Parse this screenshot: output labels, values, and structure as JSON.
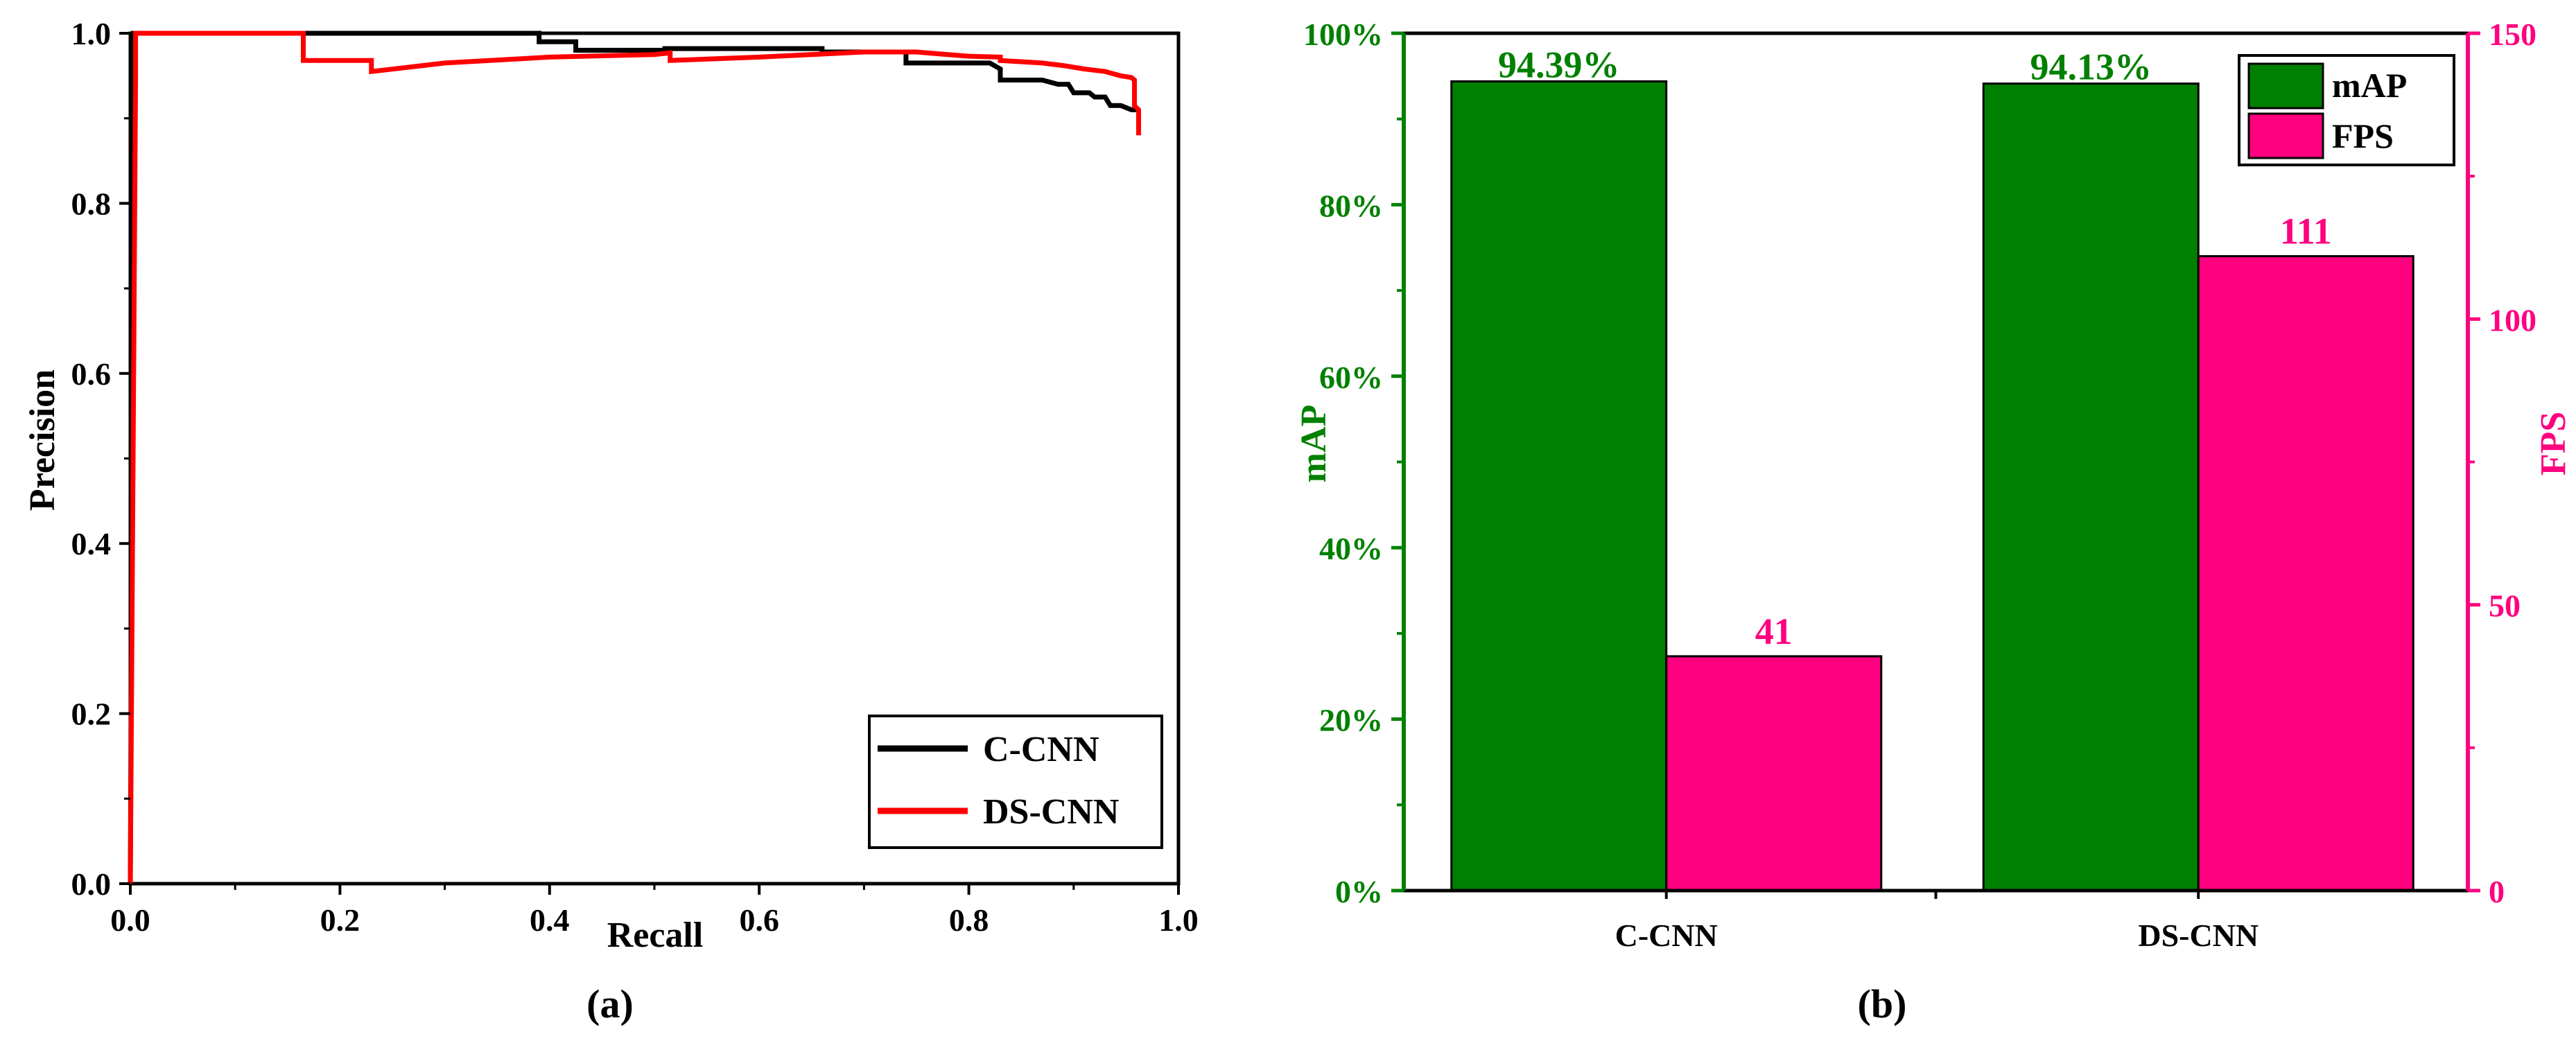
{
  "colors": {
    "c_cnn_line": "#000000",
    "ds_cnn_line": "#ff0000",
    "map_bar": "#008000",
    "fps_bar": "#ff007f",
    "axis": "#000000"
  },
  "chart_data": [
    {
      "type": "line",
      "caption": "(a)",
      "xlabel": "Recall",
      "ylabel": "Precision",
      "xlim": [
        0,
        1
      ],
      "ylim": [
        0,
        1
      ],
      "xticks": [
        "0.0",
        "0.2",
        "0.4",
        "0.6",
        "0.8",
        "1.0"
      ],
      "yticks": [
        "0.0",
        "0.2",
        "0.4",
        "0.6",
        "0.8",
        "1.0"
      ],
      "legend": {
        "position": "bottom-right",
        "entries": [
          "C-CNN",
          "DS-CNN"
        ]
      },
      "series": [
        {
          "name": "C-CNN",
          "x": [
            0,
            0.003,
            0.003,
            0.39,
            0.39,
            0.425,
            0.425,
            0.51,
            0.51,
            0.66,
            0.66,
            0.74,
            0.74,
            0.77,
            0.8,
            0.82,
            0.83,
            0.83,
            0.87,
            0.885,
            0.895,
            0.9,
            0.915,
            0.92,
            0.93,
            0.935,
            0.945,
            0.955,
            0.96
          ],
          "y": [
            0,
            0.85,
            1.0,
            1.0,
            0.99,
            0.99,
            0.98,
            0.98,
            0.982,
            0.982,
            0.978,
            0.978,
            0.965,
            0.965,
            0.965,
            0.965,
            0.958,
            0.945,
            0.945,
            0.94,
            0.94,
            0.93,
            0.93,
            0.925,
            0.925,
            0.915,
            0.915,
            0.91,
            0.91
          ]
        },
        {
          "name": "DS-CNN",
          "x": [
            0,
            0.005,
            0.005,
            0.165,
            0.165,
            0.23,
            0.23,
            0.3,
            0.4,
            0.5,
            0.515,
            0.515,
            0.6,
            0.7,
            0.75,
            0.78,
            0.8,
            0.83,
            0.83,
            0.87,
            0.89,
            0.91,
            0.93,
            0.945,
            0.955,
            0.958,
            0.958,
            0.962,
            0.962
          ],
          "y": [
            0,
            0.95,
            1.0,
            1.0,
            0.968,
            0.968,
            0.955,
            0.965,
            0.972,
            0.975,
            0.977,
            0.968,
            0.972,
            0.978,
            0.978,
            0.975,
            0.973,
            0.972,
            0.968,
            0.965,
            0.962,
            0.958,
            0.955,
            0.95,
            0.948,
            0.945,
            0.915,
            0.91,
            0.88
          ]
        }
      ]
    },
    {
      "type": "bar",
      "caption": "(b)",
      "categories": [
        "C-CNN",
        "DS-CNN"
      ],
      "left_axis": {
        "label": "mAP",
        "ylim": [
          0,
          100
        ],
        "ticks": [
          "0%",
          "20%",
          "40%",
          "60%",
          "80%",
          "100%"
        ]
      },
      "right_axis": {
        "label": "FPS",
        "ylim": [
          0,
          150
        ],
        "ticks": [
          "0",
          "50",
          "100",
          "150"
        ]
      },
      "legend": {
        "position": "top-right",
        "entries": [
          "mAP",
          "FPS"
        ]
      },
      "series": [
        {
          "name": "mAP",
          "axis": "left",
          "values": [
            94.39,
            94.13
          ],
          "labels": [
            "94.39%",
            "94.13%"
          ]
        },
        {
          "name": "FPS",
          "axis": "right",
          "values": [
            41,
            111
          ],
          "labels": [
            "41",
            "111"
          ]
        }
      ]
    }
  ]
}
